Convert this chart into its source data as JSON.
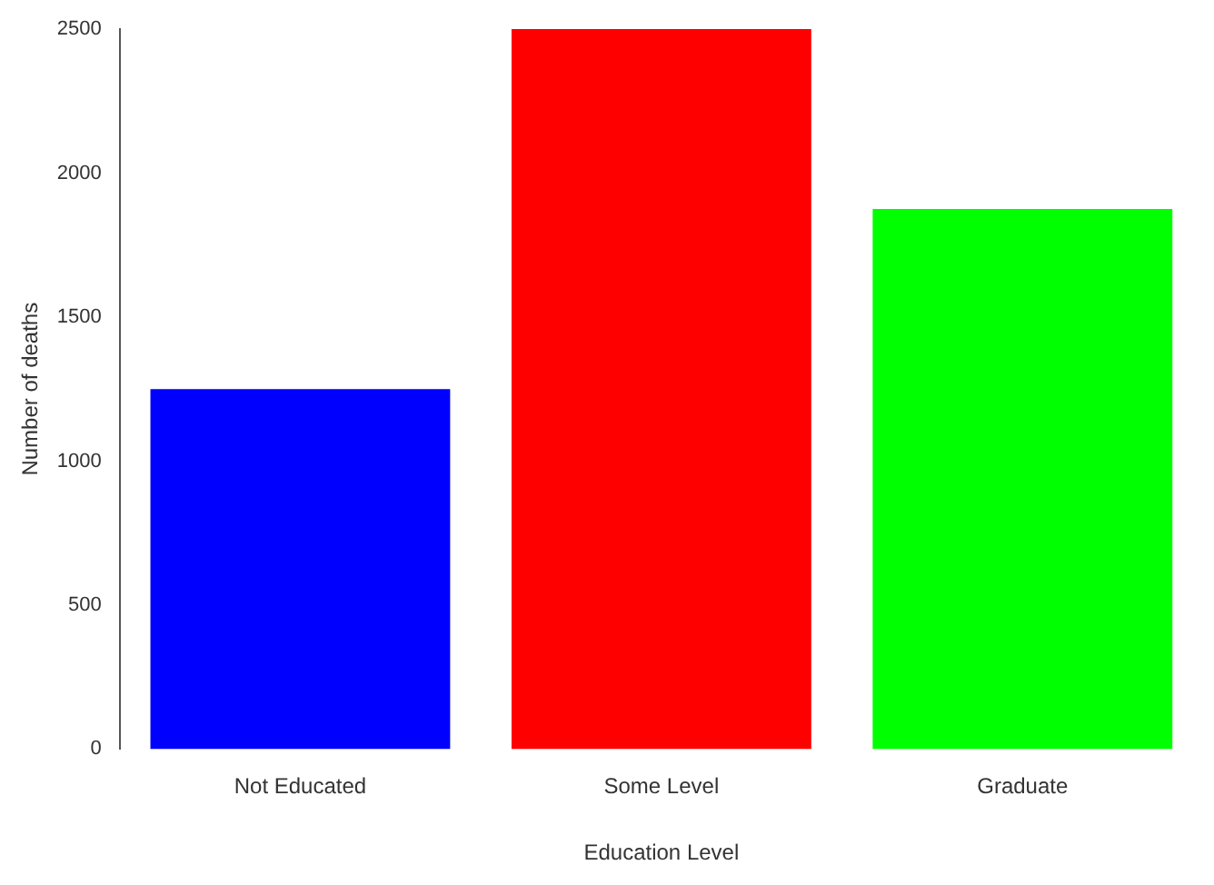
{
  "chart_data": {
    "type": "bar",
    "xlabel": "Education Level",
    "ylabel": "Number of deaths",
    "categories": [
      "Not Educated",
      "Some Level",
      "Graduate"
    ],
    "values": [
      1250,
      2500,
      1875
    ],
    "colors": [
      "#0000ff",
      "#ff0000",
      "#00ff00"
    ],
    "ylim": [
      0,
      2500
    ],
    "yticks": [
      0,
      500,
      1000,
      1500,
      2000,
      2500
    ],
    "grid": false,
    "legend": false
  }
}
